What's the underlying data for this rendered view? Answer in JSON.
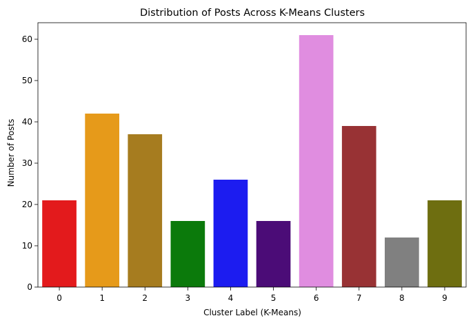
{
  "chart_data": {
    "type": "bar",
    "title": "Distribution of Posts Across K-Means Clusters",
    "xlabel": "Cluster Label (K-Means)",
    "ylabel": "Number of Posts",
    "categories": [
      "0",
      "1",
      "2",
      "3",
      "4",
      "5",
      "6",
      "7",
      "8",
      "9"
    ],
    "values": [
      21,
      42,
      37,
      16,
      26,
      16,
      61,
      39,
      12,
      21
    ],
    "colors": [
      "#e31a1c",
      "#e69a1a",
      "#a67c1f",
      "#0b7a0b",
      "#1c1cf0",
      "#4b0c77",
      "#e08de0",
      "#983234",
      "#808080",
      "#6e6e10"
    ],
    "ylim": [
      0,
      64
    ],
    "yticks": [
      0,
      10,
      20,
      30,
      40,
      50,
      60
    ],
    "grid": false,
    "legend": "none"
  }
}
